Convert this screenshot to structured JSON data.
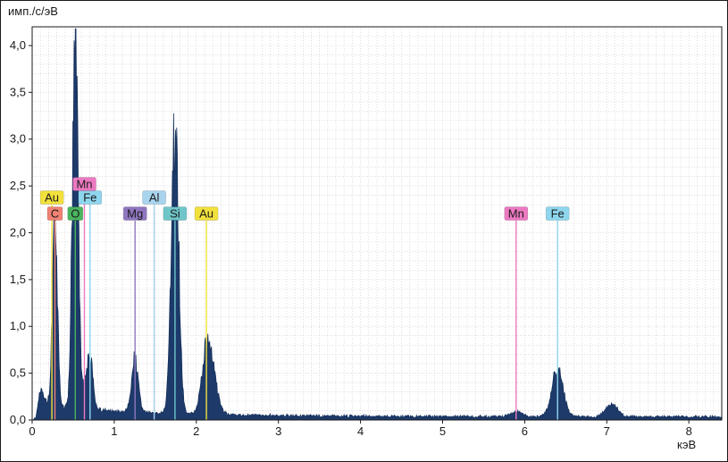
{
  "chart_data": {
    "type": "area",
    "xlabel": "кэВ",
    "ylabel": "имп./с/эВ",
    "xlim": [
      0,
      8.4
    ],
    "ylim": [
      0,
      4.2
    ],
    "x_ticks": {
      "values": [
        0,
        1,
        2,
        3,
        4,
        5,
        6,
        7,
        8
      ],
      "labels": [
        "0",
        "1",
        "2",
        "3",
        "4",
        "5",
        "6",
        "7",
        "8"
      ]
    },
    "y_ticks": {
      "values": [
        0,
        0.5,
        1,
        1.5,
        2,
        2.5,
        3,
        3.5,
        4
      ],
      "labels": [
        "0,0",
        "0,5",
        "1,0",
        "1,5",
        "2,0",
        "2,5",
        "3,0",
        "3,5",
        "4,0"
      ]
    },
    "grid": {
      "minor_step_x": 0.1,
      "minor_step_y": 0.1,
      "color": "#c9c9c9"
    },
    "series_color": "#1d3a6a",
    "series_edge": "#16315c",
    "background": {
      "amplitude": 0.13,
      "decay": 1.3,
      "floor": 0.022
    },
    "noise": {
      "seed": 13,
      "amount": 0.15,
      "floor_jitter": 0.025
    },
    "peaks": [
      {
        "element": "low-energy noise",
        "energy_keV": 0.1,
        "height": 0.2,
        "sigma": 0.045
      },
      {
        "element": "C",
        "energy_keV": 0.277,
        "height": 2.05,
        "sigma": 0.03
      },
      {
        "element": "O",
        "energy_keV": 0.525,
        "height": 4.1,
        "sigma": 0.034
      },
      {
        "element": "Mn L",
        "energy_keV": 0.637,
        "height": 0.16,
        "sigma": 0.038
      },
      {
        "element": "Fe L",
        "energy_keV": 0.705,
        "height": 0.52,
        "sigma": 0.038
      },
      {
        "element": "Mg K",
        "energy_keV": 1.253,
        "height": 0.58,
        "sigma": 0.04
      },
      {
        "element": "Si K",
        "energy_keV": 1.74,
        "height": 3.02,
        "sigma": 0.044
      },
      {
        "element": "Au M",
        "energy_keV": 2.123,
        "height": 0.66,
        "sigma": 0.058
      },
      {
        "element": "Au M2",
        "energy_keV": 2.21,
        "height": 0.3,
        "sigma": 0.06
      },
      {
        "element": "Mn K",
        "energy_keV": 5.895,
        "height": 0.055,
        "sigma": 0.065
      },
      {
        "element": "Fe Ka",
        "energy_keV": 6.4,
        "height": 0.5,
        "sigma": 0.068
      },
      {
        "element": "Fe Kb",
        "energy_keV": 7.058,
        "height": 0.135,
        "sigma": 0.07
      }
    ],
    "element_markers": [
      {
        "label": "Au",
        "x": 0.24,
        "row": 1,
        "color": "#f2e13c"
      },
      {
        "label": "C",
        "x": 0.277,
        "row": 2,
        "color": "#f08273"
      },
      {
        "label": "O",
        "x": 0.525,
        "row": 2,
        "color": "#49b45e"
      },
      {
        "label": "Mn",
        "x": 0.637,
        "row": 0,
        "color": "#ec79c1"
      },
      {
        "label": "Fe",
        "x": 0.705,
        "row": 1,
        "color": "#8ed6ee"
      },
      {
        "label": "Mg",
        "x": 1.253,
        "row": 2,
        "color": "#8f76c0"
      },
      {
        "label": "Al",
        "x": 1.486,
        "row": 1,
        "color": "#a8d4ee"
      },
      {
        "label": "Si",
        "x": 1.74,
        "row": 2,
        "color": "#6fc6c9"
      },
      {
        "label": "Au",
        "x": 2.123,
        "row": 2,
        "color": "#f2e13c"
      },
      {
        "label": "Mn",
        "x": 5.895,
        "row": 2,
        "color": "#ec79c1"
      },
      {
        "label": "Fe",
        "x": 6.4,
        "row": 2,
        "color": "#8ed6ee"
      }
    ]
  }
}
